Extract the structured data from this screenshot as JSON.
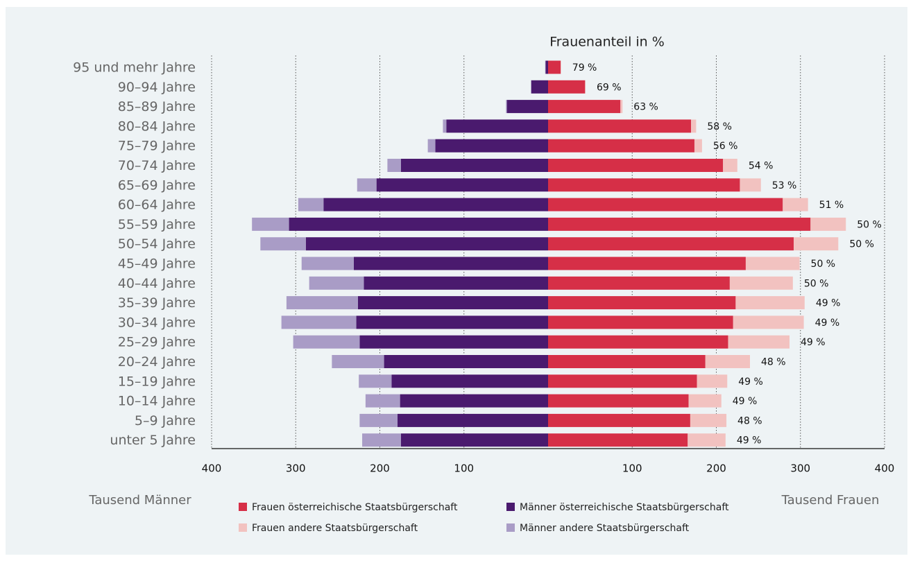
{
  "chart_data": {
    "type": "pyramid",
    "title": "Frauenanteil in  %",
    "categories": [
      "95 und mehr Jahre",
      "90–94 Jahre",
      "85–89 Jahre",
      "80–84 Jahre",
      "75–79 Jahre",
      "70–74 Jahre",
      "65–69 Jahre",
      "60–64 Jahre",
      "55–59 Jahre",
      "50–54 Jahre",
      "45–49 Jahre",
      "40–44 Jahre",
      "35–39 Jahre",
      "30–34 Jahre",
      "25–29 Jahre",
      "20–24 Jahre",
      "15–19 Jahre",
      "10–14 Jahre",
      "5–9 Jahre",
      "unter 5 Jahre"
    ],
    "series": [
      {
        "name": "Frauen österreichische Staatsbürgerschaft",
        "color": "#d62f47",
        "side": "right",
        "values": [
          15,
          44,
          86,
          170,
          174,
          208,
          228,
          279,
          312,
          292,
          235,
          216,
          223,
          220,
          214,
          187,
          177,
          167,
          169,
          166
        ]
      },
      {
        "name": "Frauen andere Staatsbürgerschaft",
        "color": "#f2c2c0",
        "side": "right",
        "values": [
          0.5,
          0.5,
          2.5,
          6,
          9,
          17,
          25,
          30,
          42,
          53,
          64,
          75,
          82,
          84,
          73,
          53,
          36,
          39,
          43,
          45
        ]
      },
      {
        "name": "Männer österreichische Staatsbürgerschaft",
        "color": "#4a1a6e",
        "side": "left",
        "values": [
          3,
          20,
          49,
          121,
          134,
          175,
          204,
          267,
          308,
          288,
          231,
          219,
          226,
          228,
          224,
          195,
          186,
          176,
          179,
          175
        ]
      },
      {
        "name": "Männer andere Staatsbürgerschaft",
        "color": "#a99cc6",
        "side": "left",
        "values": [
          0.5,
          0.5,
          1,
          4,
          9,
          16,
          23,
          30,
          44,
          54,
          62,
          65,
          85,
          89,
          79,
          62,
          39,
          41,
          45,
          46
        ]
      }
    ],
    "share": {
      "values": [
        79,
        69,
        63,
        58,
        56,
        54,
        53,
        51,
        50,
        50,
        50,
        50,
        49,
        49,
        49,
        48,
        49,
        49,
        48,
        49
      ],
      "value_labels": [
        "79 %",
        "69 %",
        "63 %",
        "58 %",
        "56 %",
        "54 %",
        "53 %",
        "51 %",
        "50 %",
        "50 %",
        "50 %",
        "50 %",
        "49 %",
        "49 %",
        "49 %",
        "48 %",
        "49 %",
        "49 %",
        "48 %",
        "49 %"
      ]
    },
    "xlim": [
      0,
      400
    ],
    "xticks": [
      100,
      200,
      300,
      400
    ],
    "grid": true,
    "xlabel_left": "Tausend Männer",
    "xlabel_right": "Tausend Frauen"
  }
}
